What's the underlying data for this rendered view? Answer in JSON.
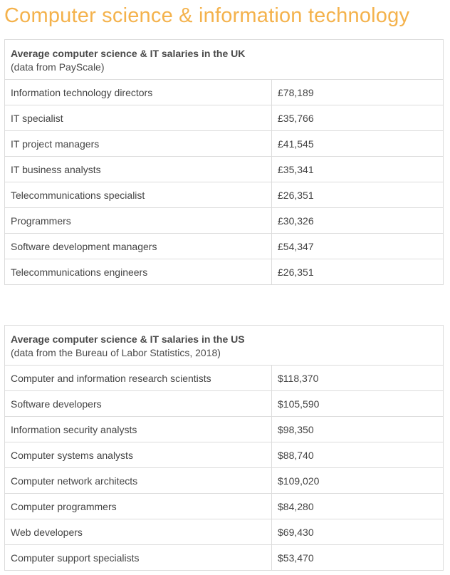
{
  "page": {
    "title": "Computer science & information technology"
  },
  "colors": {
    "title_accent": "#f4b24c",
    "border": "#dcdcdc",
    "text": "#444444"
  },
  "uk_table": {
    "title": "Average computer science & IT salaries in the UK",
    "source": "(data from PayScale)",
    "rows": [
      {
        "job": "Information technology directors",
        "salary": "£78,189"
      },
      {
        "job": "IT specialist",
        "salary": "£35,766"
      },
      {
        "job": "IT project managers",
        "salary": "£41,545"
      },
      {
        "job": "IT business analysts",
        "salary": "£35,341"
      },
      {
        "job": "Telecommunications specialist",
        "salary": "£26,351"
      },
      {
        "job": "Programmers",
        "salary": "£30,326"
      },
      {
        "job": "Software development managers",
        "salary": "£54,347"
      },
      {
        "job": "Telecommunications engineers",
        "salary": "£26,351"
      }
    ]
  },
  "us_table": {
    "title": "Average computer science & IT salaries in the US",
    "source": "(data from the Bureau of Labor Statistics, 2018)",
    "rows": [
      {
        "job": "Computer and information research scientists",
        "salary": "$118,370"
      },
      {
        "job": "Software developers",
        "salary": "$105,590"
      },
      {
        "job": "Information security analysts",
        "salary": "$98,350"
      },
      {
        "job": "Computer systems analysts",
        "salary": "$88,740"
      },
      {
        "job": "Computer network architects",
        "salary": "$109,020"
      },
      {
        "job": "Computer programmers",
        "salary": "$84,280"
      },
      {
        "job": "Web developers",
        "salary": "$69,430"
      },
      {
        "job": "Computer support specialists",
        "salary": "$53,470"
      }
    ]
  }
}
